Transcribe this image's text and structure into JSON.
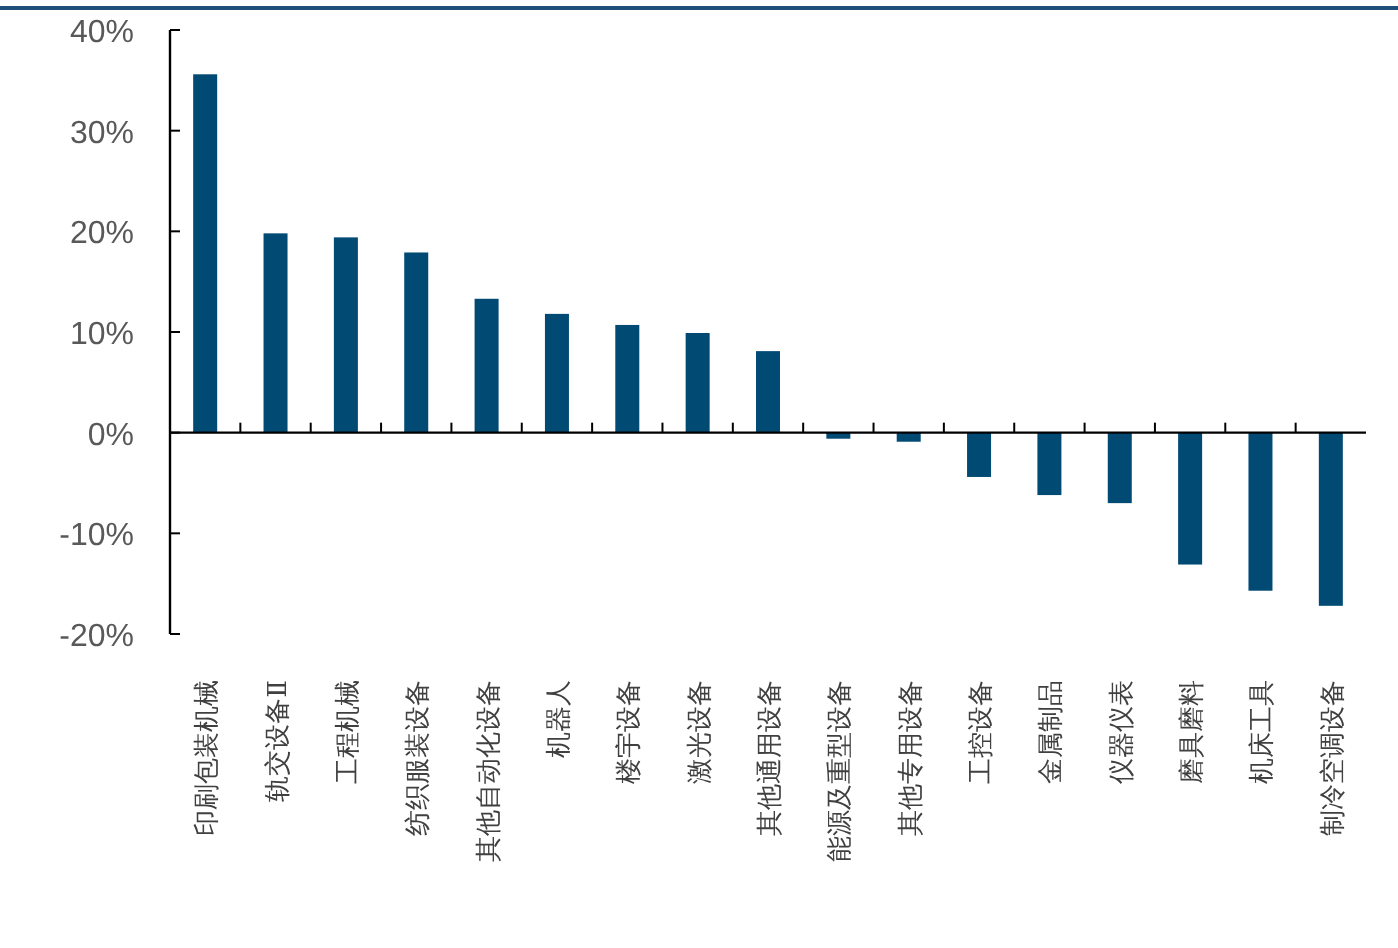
{
  "chart_data": {
    "type": "bar",
    "categories": [
      "印刷包装机械",
      "轨交设备Ⅱ",
      "工程机械",
      "纺织服装设备",
      "其他自动化设备",
      "机器人",
      "楼宇设备",
      "激光设备",
      "其他通用设备",
      "能源及重型设备",
      "其他专用设备",
      "工控设备",
      "金属制品",
      "仪器仪表",
      "磨具磨料",
      "机床工具",
      "制冷空调设备"
    ],
    "values": [
      35.6,
      19.8,
      19.4,
      17.9,
      13.3,
      11.8,
      10.7,
      9.9,
      8.1,
      -0.6,
      -0.9,
      -4.4,
      -6.2,
      -7.0,
      -13.1,
      -15.7,
      -17.2
    ],
    "color": "#004a73",
    "ylim": [
      -20,
      40
    ],
    "yticks": [
      {
        "value": -20,
        "label": "-20%"
      },
      {
        "value": -10,
        "label": "-10%"
      },
      {
        "value": 0,
        "label": "0%"
      },
      {
        "value": 10,
        "label": "10%"
      },
      {
        "value": 20,
        "label": "20%"
      },
      {
        "value": 30,
        "label": "30%"
      },
      {
        "value": 40,
        "label": "40%"
      }
    ]
  }
}
